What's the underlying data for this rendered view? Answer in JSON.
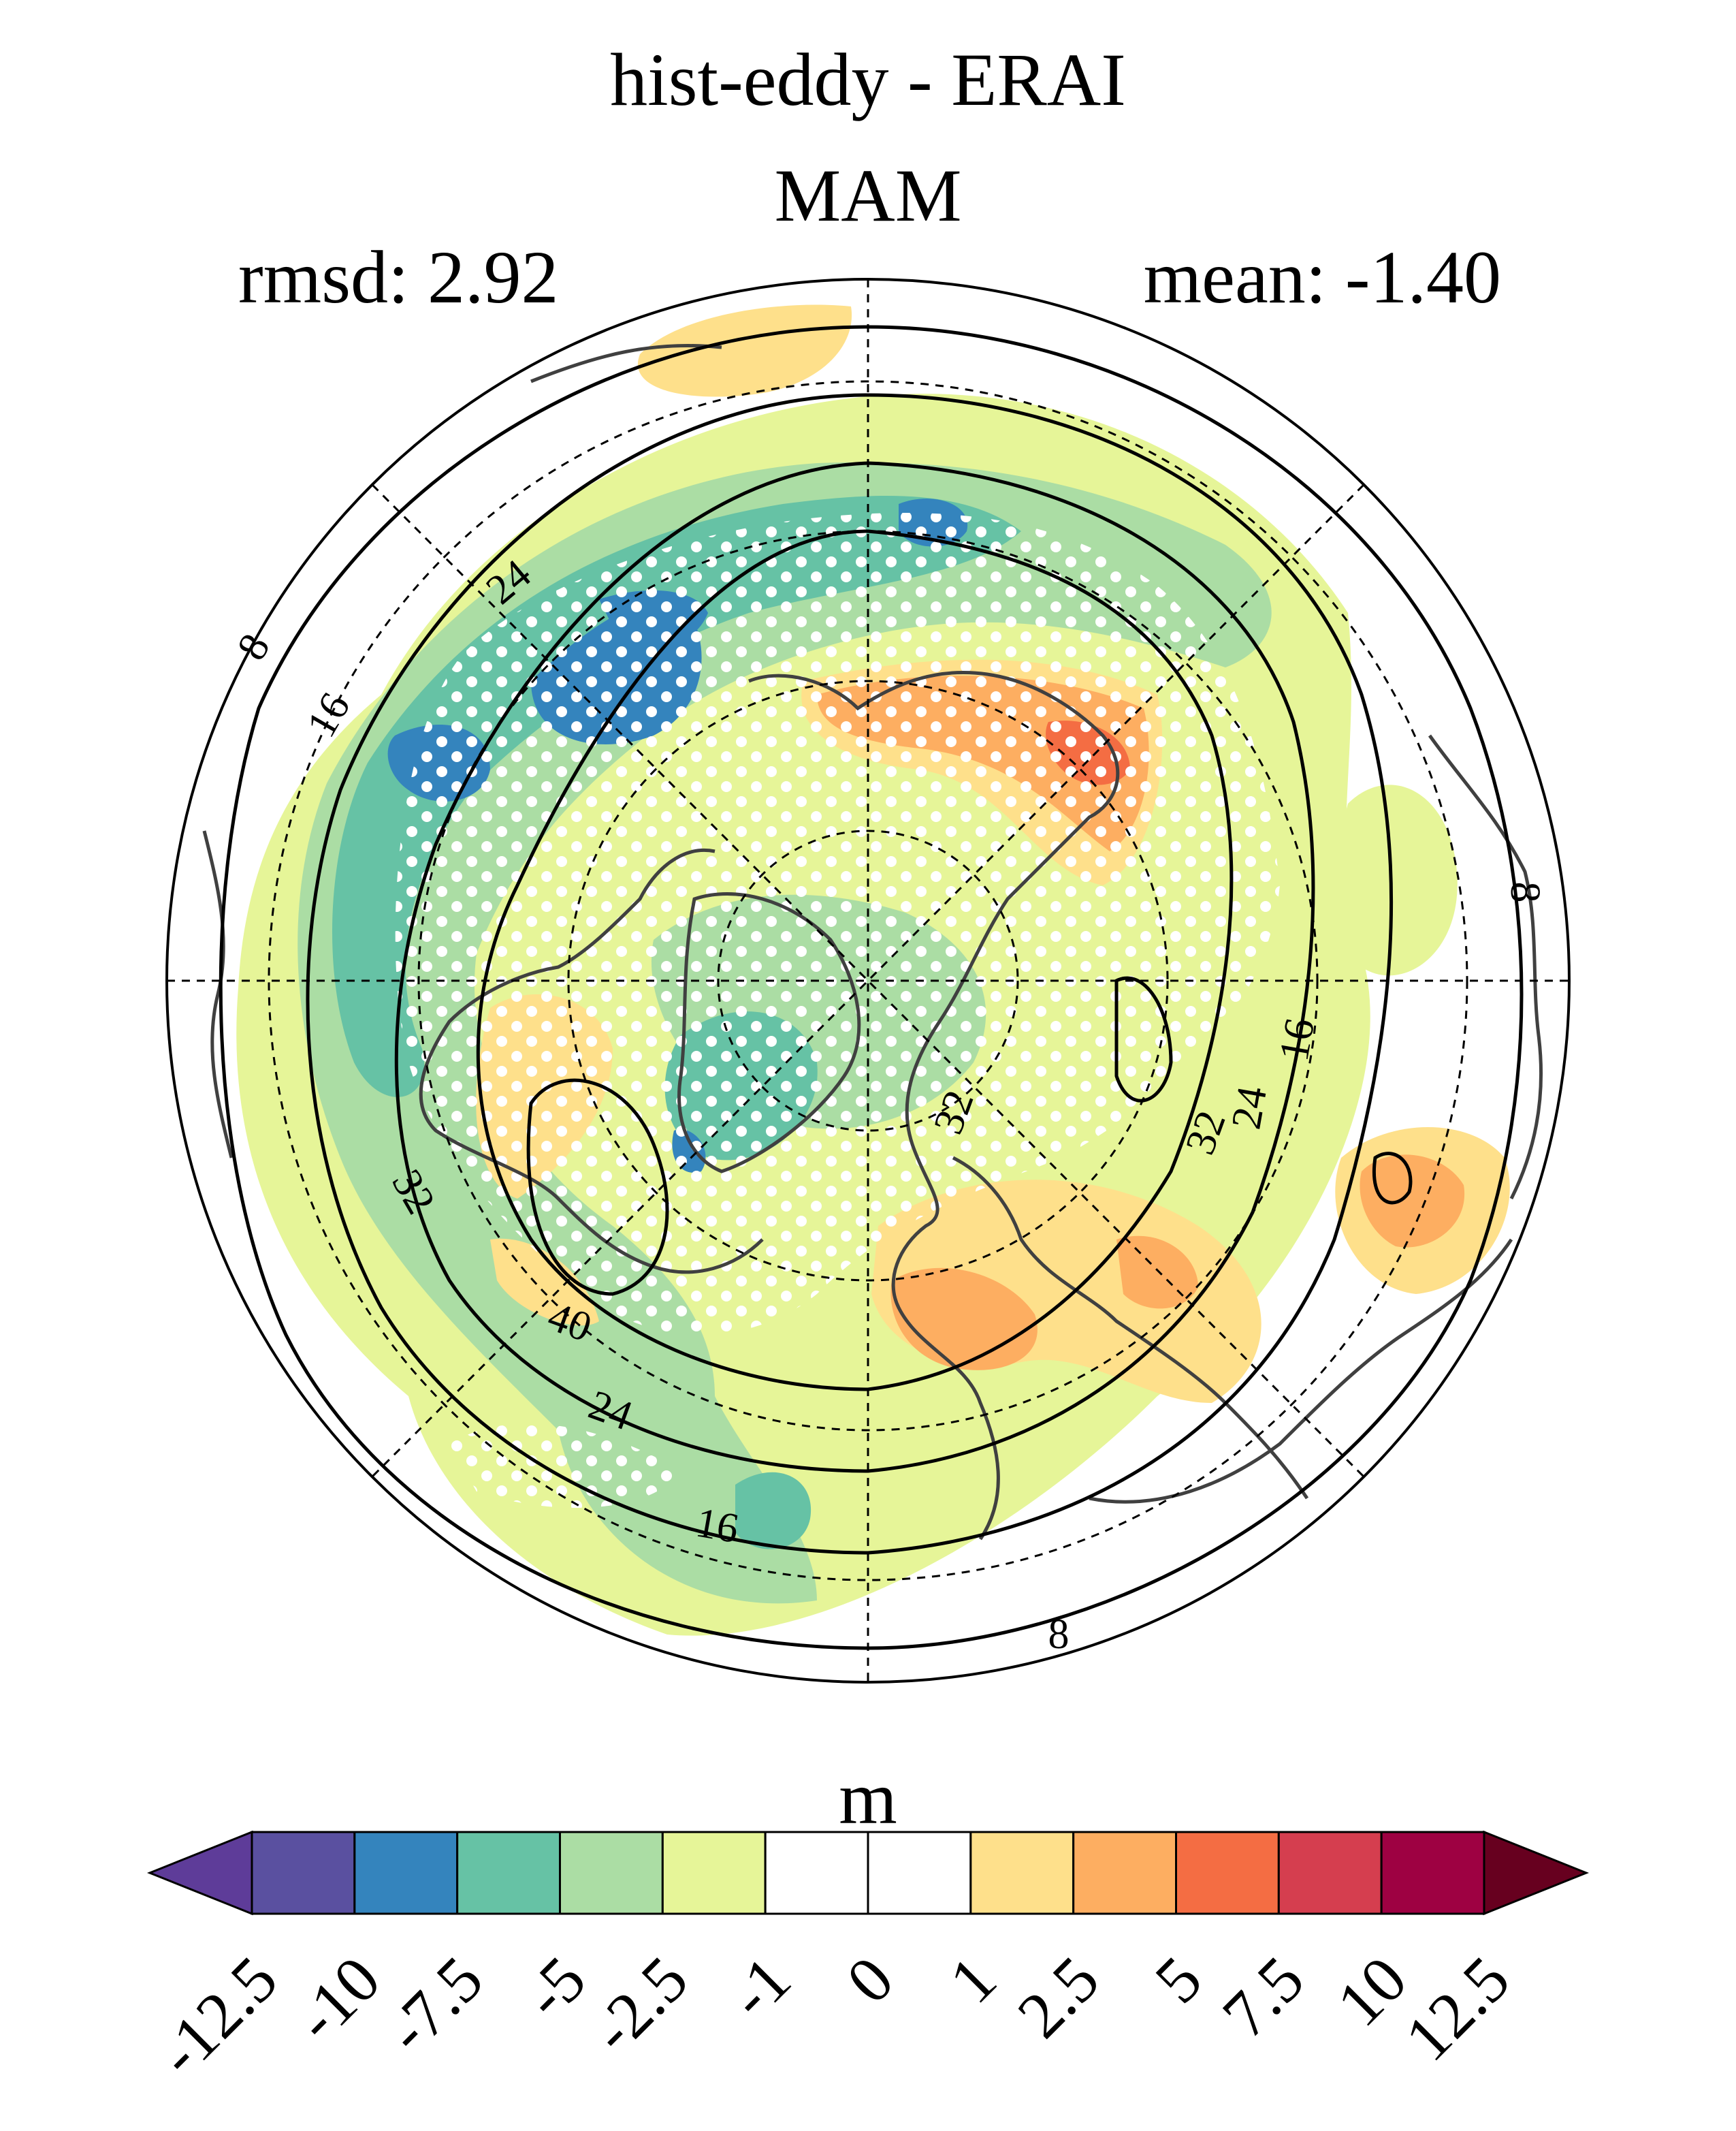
{
  "title_line1": "hist-eddy - ERAI",
  "title_line2": "MAM",
  "rmsd_text": "rmsd: 2.92",
  "mean_text": "mean: -1.40",
  "units": "m",
  "contour_labels": [
    "8",
    "16",
    "24",
    "32",
    "40",
    "24",
    "16",
    "8",
    "16",
    "24",
    "32",
    "32",
    "8"
  ],
  "colorbar": {
    "ticks": [
      "-12.5",
      "-10",
      "-7.5",
      "-5",
      "-2.5",
      "-1",
      "0",
      "1",
      "2.5",
      "5",
      "7.5",
      "10",
      "12.5"
    ],
    "colors": [
      "#5e3c99",
      "#5a50a0",
      "#3484bd",
      "#66c2a5",
      "#abdda4",
      "#e6f598",
      "#ffffff",
      "#ffffff",
      "#fee08b",
      "#fdae61",
      "#f46d43",
      "#d53e4f",
      "#9e0142",
      "#67001f"
    ]
  },
  "anomaly_regions": [
    {
      "level": "-7.5",
      "color": "#3484bd"
    },
    {
      "level": "-5",
      "color": "#66c2a5"
    },
    {
      "level": "-2.5",
      "color": "#abdda4"
    },
    {
      "level": "-1",
      "color": "#e6f598"
    },
    {
      "level": "1",
      "color": "#fee08b"
    },
    {
      "level": "2.5",
      "color": "#fdae61"
    },
    {
      "level": "5",
      "color": "#f46d43"
    }
  ]
}
